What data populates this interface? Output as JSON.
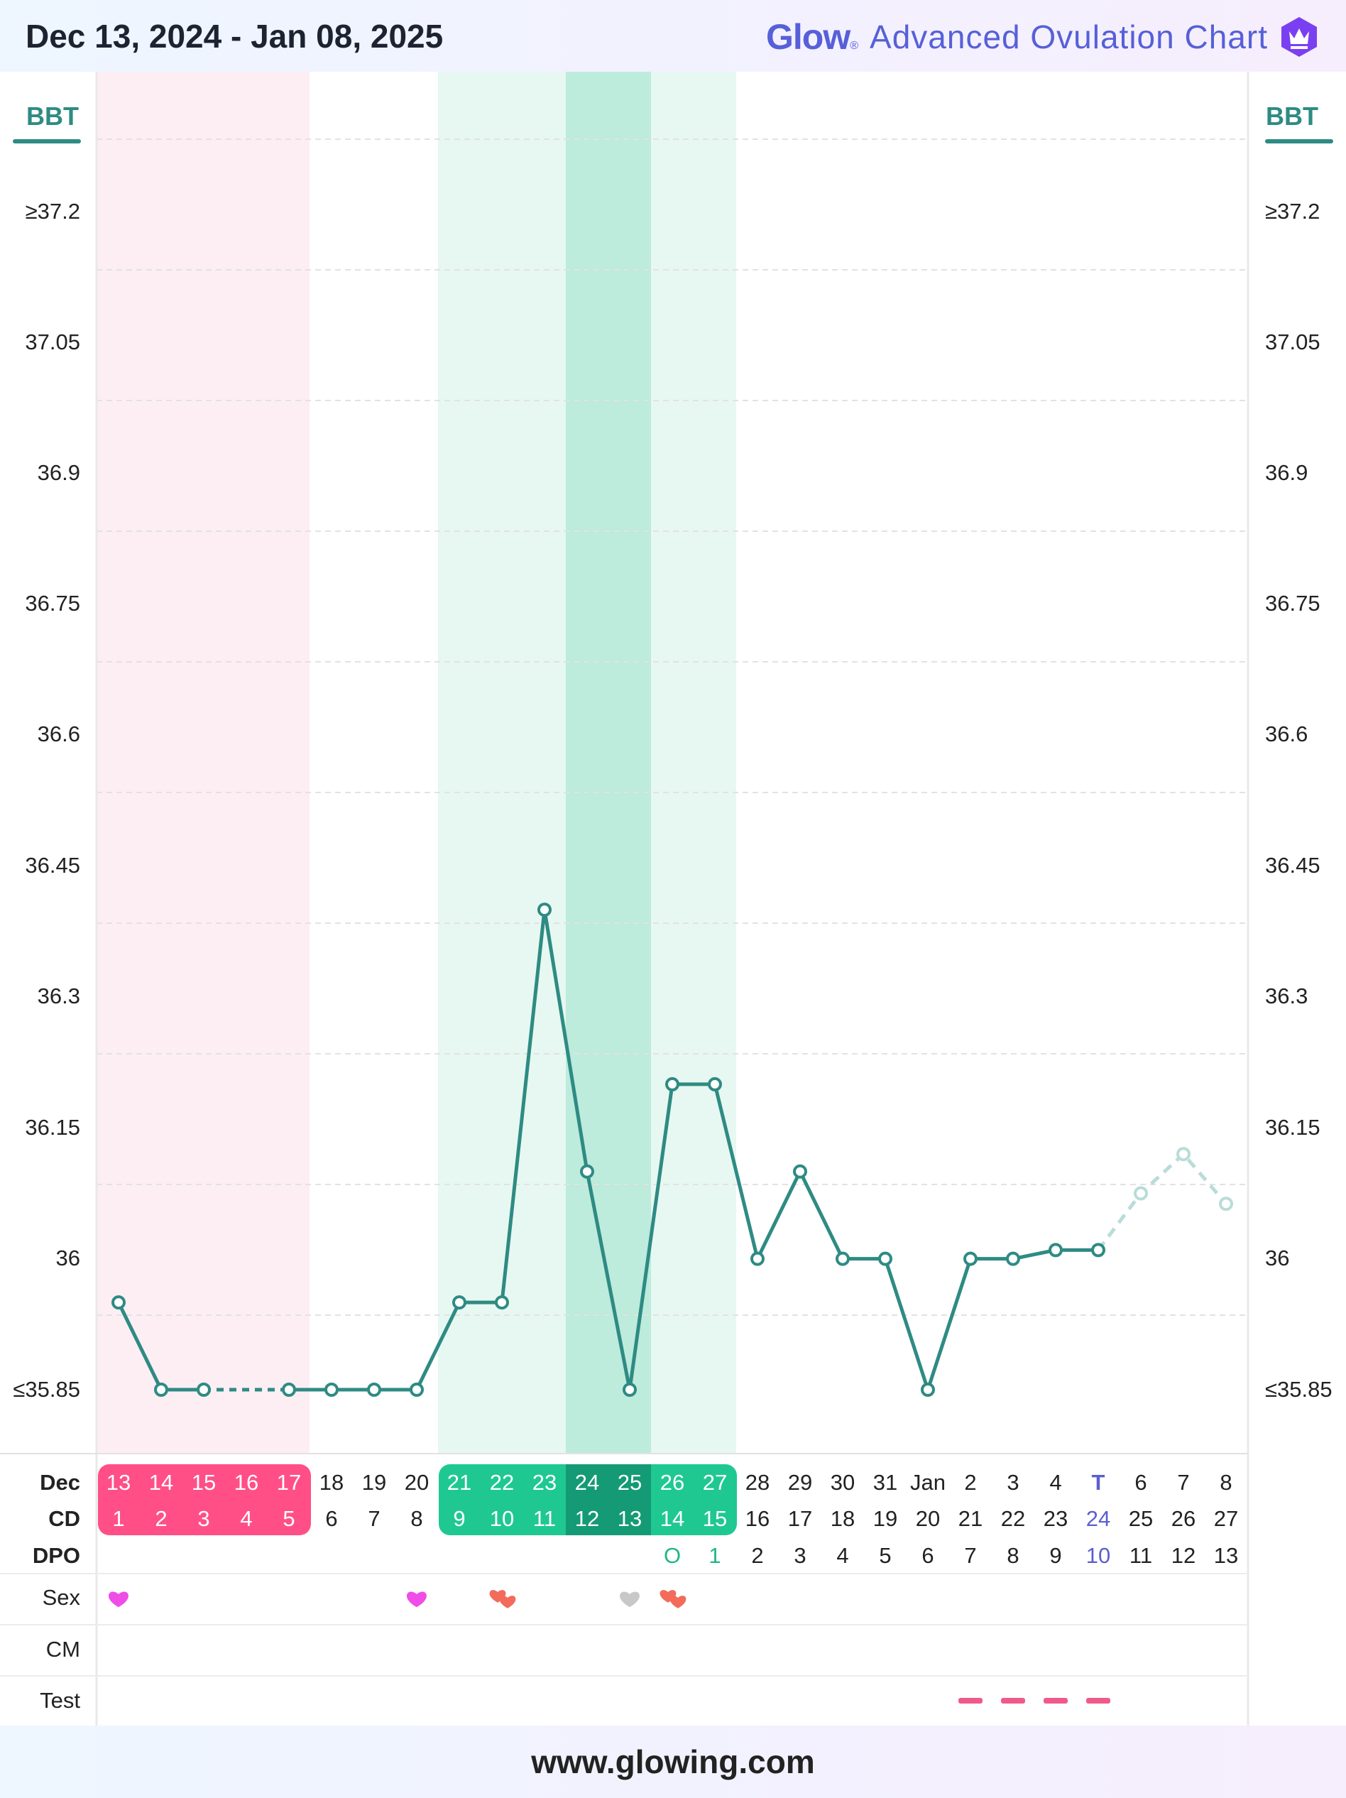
{
  "header": {
    "date_range": "Dec 13, 2024 - Jan 08, 2025",
    "brand_logo": "Glow",
    "brand_reg": "®",
    "brand_title": "Advanced Ovulation Chart",
    "brand_icon": "crown-icon"
  },
  "footer": {
    "url": "www.glowing.com"
  },
  "colors": {
    "line": "#2e8b83",
    "period_band": "#fdeef3",
    "fertile_band": "#e6f8f1",
    "peak_band": "#bdebdc",
    "period_chip": "#ff4f86",
    "fertile_chip": "#1fc891",
    "peak_chip": "#149a74",
    "today": "#5a5fd0",
    "heart_magenta": "#f04ce8",
    "heart_coral": "#f26b5b",
    "heart_grey": "#c8c8c8",
    "test_dash": "#f05a8a",
    "grid": "#e2e2e2",
    "predicted": "#b9dcd8"
  },
  "chart_data": {
    "type": "line",
    "ylabel": "BBT",
    "y_ticks": [
      "≥37.2",
      "37.05",
      "36.9",
      "36.75",
      "36.6",
      "36.45",
      "36.3",
      "36.15",
      "36",
      "≤35.85"
    ],
    "ylim": [
      35.85,
      37.2
    ],
    "months": [
      "Dec",
      "Dec",
      "Dec",
      "Dec",
      "Dec",
      "Dec",
      "Dec",
      "Dec",
      "Dec",
      "Dec",
      "Dec",
      "Dec",
      "Dec",
      "Dec",
      "Dec",
      "Dec",
      "Dec",
      "Dec",
      "Dec",
      "Jan",
      "Jan",
      "Jan",
      "Jan",
      "Jan",
      "Jan",
      "Jan",
      "Jan"
    ],
    "dates": [
      "13",
      "14",
      "15",
      "16",
      "17",
      "18",
      "19",
      "20",
      "21",
      "22",
      "23",
      "24",
      "25",
      "26",
      "27",
      "28",
      "29",
      "30",
      "31",
      "Jan",
      "2",
      "3",
      "4",
      "T",
      "6",
      "7",
      "8"
    ],
    "cd": [
      "1",
      "2",
      "3",
      "4",
      "5",
      "6",
      "7",
      "8",
      "9",
      "10",
      "11",
      "12",
      "13",
      "14",
      "15",
      "16",
      "17",
      "18",
      "19",
      "20",
      "21",
      "22",
      "23",
      "24",
      "25",
      "26",
      "27"
    ],
    "dpo": [
      "",
      "",
      "",
      "",
      "",
      "",
      "",
      "",
      "",
      "",
      "",
      "",
      "",
      "O",
      "1",
      "2",
      "3",
      "4",
      "5",
      "6",
      "7",
      "8",
      "9",
      "10",
      "11",
      "12",
      "13"
    ],
    "row_labels": {
      "month": "Dec",
      "cd": "CD",
      "dpo": "DPO",
      "sex": "Sex",
      "cm": "CM",
      "test": "Test"
    },
    "bbt": [
      35.95,
      35.85,
      35.85,
      null,
      35.85,
      35.85,
      35.85,
      35.85,
      35.95,
      35.95,
      36.4,
      36.1,
      35.85,
      36.2,
      36.2,
      36.0,
      36.1,
      36.0,
      36.0,
      35.85,
      36.0,
      36.0,
      36.01,
      36.01,
      null,
      null,
      null
    ],
    "bbt_predicted": [
      null,
      null,
      null,
      null,
      null,
      null,
      null,
      null,
      null,
      null,
      null,
      null,
      null,
      null,
      null,
      null,
      null,
      null,
      null,
      null,
      null,
      null,
      null,
      36.01,
      36.075,
      36.12,
      36.063
    ],
    "bbt_dashed_gap": [
      2,
      4
    ],
    "period_days": [
      0,
      4
    ],
    "fertile_days": [
      8,
      14
    ],
    "peak_days": [
      11,
      12
    ],
    "today_index": 23,
    "sex": [
      {
        "day": 0,
        "icon": "heart-icon",
        "color": "#f04ce8"
      },
      {
        "day": 7,
        "icon": "heart-icon",
        "color": "#f04ce8"
      },
      {
        "day": 9,
        "icon": "double-heart-icon",
        "color": "#f26b5b"
      },
      {
        "day": 12,
        "icon": "heart-icon",
        "color": "#c8c8c8"
      },
      {
        "day": 13,
        "icon": "double-heart-icon",
        "color": "#f26b5b"
      }
    ],
    "test_negative_days": [
      20,
      21,
      22,
      23
    ],
    "grid": true
  }
}
